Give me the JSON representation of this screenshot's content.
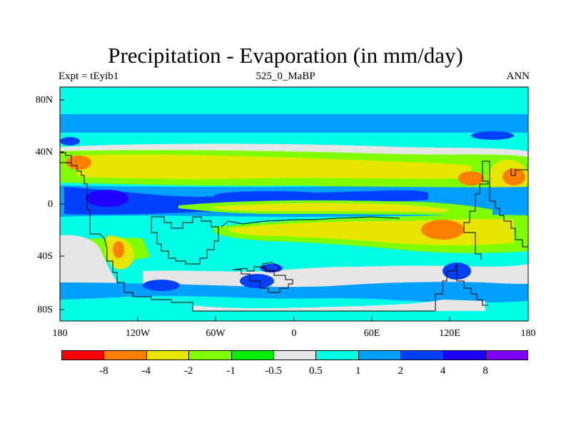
{
  "title": "Precipitation - Evaporation (in mm/day)",
  "subtitle_left": "Expt = tEyib1",
  "subtitle_center": "525_0_MaBP",
  "subtitle_right": "ANN",
  "axes": {
    "y_ticks": [
      "80N",
      "40N",
      "0",
      "40S",
      "80S"
    ],
    "x_ticks": [
      "180",
      "120W",
      "60W",
      "0",
      "60E",
      "120E",
      "180"
    ]
  },
  "colorbar": {
    "colors": [
      "#ff0000",
      "#ff7f00",
      "#e6e600",
      "#80ff00",
      "#00ee00",
      "#e6e6e6",
      "#00ffe6",
      "#00a0ff",
      "#0040ff",
      "#2000ff",
      "#8000ff"
    ],
    "labels": [
      "-8",
      "-4",
      "-2",
      "-1",
      "-0.5",
      "0.5",
      "1",
      "2",
      "4",
      "8"
    ]
  }
}
